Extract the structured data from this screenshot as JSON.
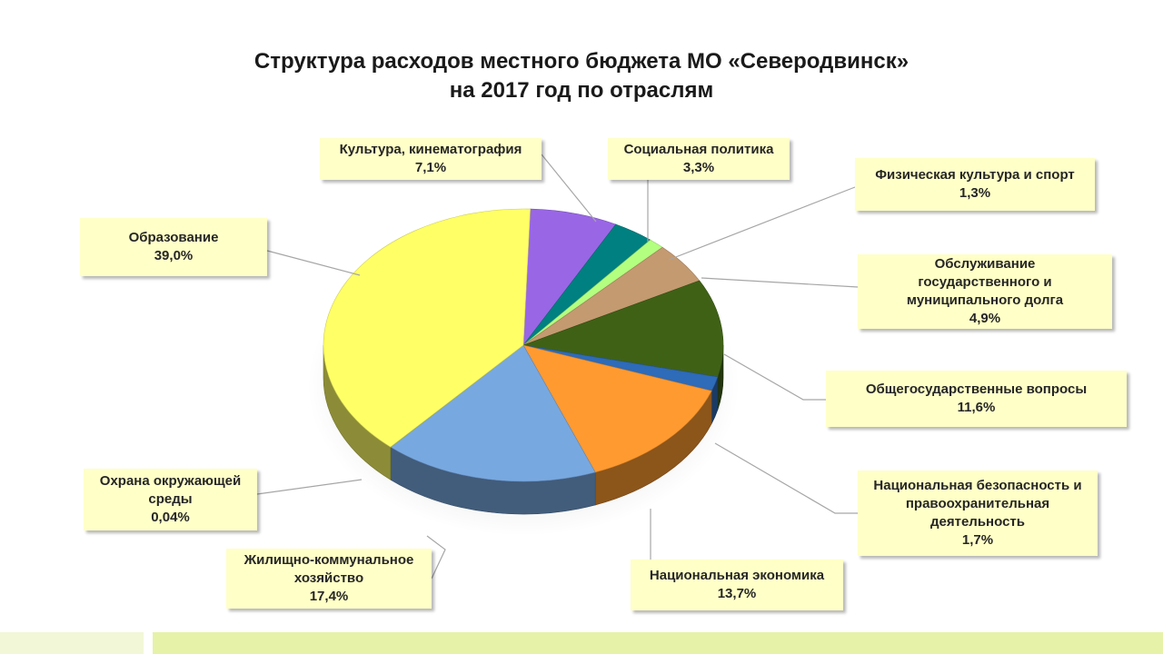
{
  "title": {
    "line1": "Структура расходов местного бюджета МО «Северодвинск»",
    "line2": "на 2017 год по отраслям"
  },
  "chart_data": {
    "type": "pie",
    "title": "Структура расходов местного бюджета МО «Северодвинск» на 2017 год по отраслям",
    "unit": "%",
    "slices": [
      {
        "name": "Культура, кинематография",
        "value": 7.1,
        "label": "7,1%",
        "color": "#9966e6"
      },
      {
        "name": "Социальная политика",
        "value": 3.3,
        "label": "3,3%",
        "color": "#008080"
      },
      {
        "name": "Физическая культура и спорт",
        "value": 1.3,
        "label": "1,3%",
        "color": "#b3ff80"
      },
      {
        "name": "Обслуживание государственного и муниципального долга",
        "value": 4.9,
        "label": "4,9%",
        "color": "#c49a70"
      },
      {
        "name": "Общегосударственные вопросы",
        "value": 11.6,
        "label": "11,6%",
        "color": "#3f6116"
      },
      {
        "name": "Национальная безопасность и правоохранительная деятельность",
        "value": 1.7,
        "label": "1,7%",
        "color": "#2e6bb8"
      },
      {
        "name": "Национальная экономика",
        "value": 13.7,
        "label": "13,7%",
        "color": "#ff9a30"
      },
      {
        "name": "Жилищно-коммунальное хозяйство",
        "value": 17.4,
        "label": "17,4%",
        "color": "#78a8e0"
      },
      {
        "name": "Охрана окружающей среды",
        "value": 0.04,
        "label": "0,04%",
        "color": "#b0d060"
      },
      {
        "name": "Образование",
        "value": 39.0,
        "label": "39,0%",
        "color": "#ffff66"
      }
    ]
  }
}
